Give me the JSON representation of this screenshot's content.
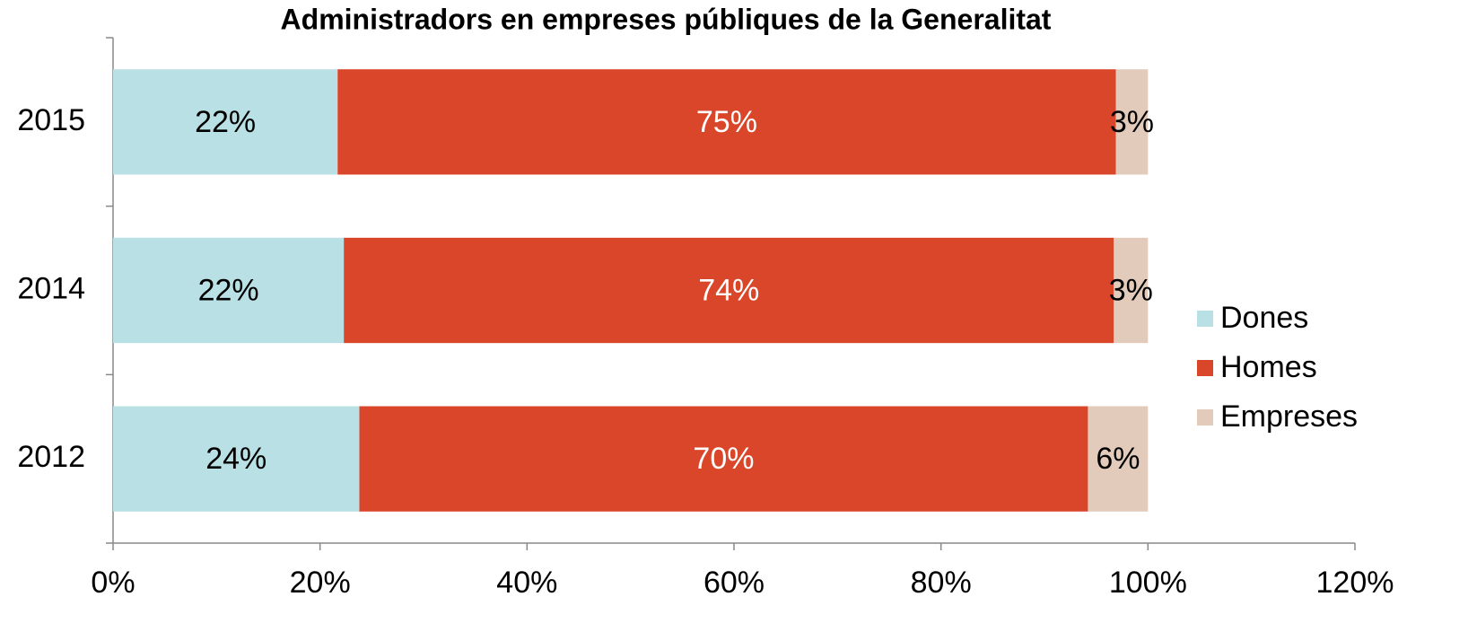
{
  "chart_data": {
    "type": "stacked_barh",
    "title": "Administradors en empreses públiques de la Generalitat",
    "categories": [
      "2015",
      "2014",
      "2012"
    ],
    "series": [
      {
        "name": "Dones",
        "color": "#b9e0e4",
        "label_color": "#000000",
        "values": [
          21.7,
          22.3,
          23.8
        ],
        "value_labels": [
          "22%",
          "22%",
          "24%"
        ]
      },
      {
        "name": "Homes",
        "color": "#da4629",
        "label_color": "#ffffff",
        "values": [
          75.2,
          74.4,
          70.4
        ],
        "value_labels": [
          "75%",
          "74%",
          "70%"
        ]
      },
      {
        "name": "Empreses",
        "color": "#e2cbbb",
        "label_color": "#000000",
        "values": [
          3.1,
          3.3,
          5.8
        ],
        "value_labels": [
          "3%",
          "3%",
          "6%"
        ]
      }
    ],
    "xlim": [
      0,
      120
    ],
    "xticks": [
      {
        "value": 0,
        "label": "0%"
      },
      {
        "value": 20,
        "label": "20%"
      },
      {
        "value": 40,
        "label": "40%"
      },
      {
        "value": 60,
        "label": "60%"
      },
      {
        "value": 80,
        "label": "80%"
      },
      {
        "value": 100,
        "label": "100%"
      },
      {
        "value": 120,
        "label": "120%"
      }
    ],
    "grid": false,
    "legend": "right"
  }
}
